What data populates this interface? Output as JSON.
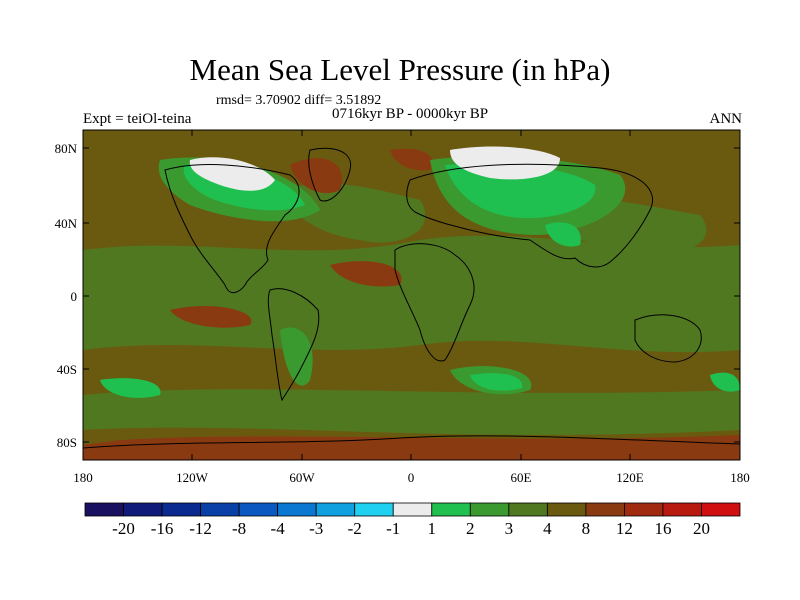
{
  "title": "Mean Sea Level Pressure (in hPa)",
  "stats": "rmsd= 3.70902 diff= 3.51892",
  "period": "0716kyr BP - 0000kyr BP",
  "experiment": "Expt = teiOl-teina",
  "season": "ANN",
  "lat_labels": [
    "80N",
    "40N",
    "0",
    "40S",
    "80S"
  ],
  "lon_labels": [
    "180",
    "120W",
    "60W",
    "0",
    "60E",
    "120E",
    "180"
  ],
  "colorbar": {
    "labels": [
      "-20",
      "-16",
      "-12",
      "-8",
      "-4",
      "-3",
      "-2",
      "-1",
      "1",
      "2",
      "3",
      "4",
      "8",
      "12",
      "16",
      "20"
    ],
    "colors": [
      "#1a1060",
      "#101a78",
      "#0a2a90",
      "#0840a8",
      "#0a58c0",
      "#0a78d0",
      "#10a0e0",
      "#20d0f0",
      "#ececec",
      "#20c050",
      "#3a9a30",
      "#507820",
      "#6a5a10",
      "#8a3a10",
      "#a02a10",
      "#b81a10",
      "#d01010"
    ]
  },
  "map_colors": {
    "background": "#6a5a10",
    "olive": "#507820",
    "green": "#3a9a30",
    "bright_green": "#20c050",
    "brown": "#8a3a10",
    "white": "#ececec"
  }
}
